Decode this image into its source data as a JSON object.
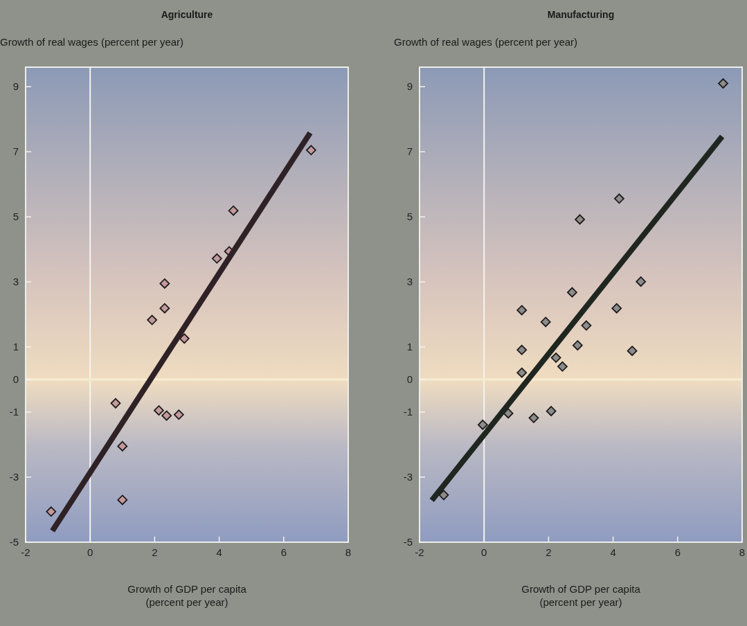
{
  "chart_data": [
    {
      "type": "scatter",
      "title": "Agriculture",
      "ylabel": "Growth of real wages (percent per year)",
      "xlabel": "Growth of GDP per capita\n(percent per year)",
      "xlim": [
        -2,
        8
      ],
      "xticks": [
        -2,
        0,
        2,
        4,
        6,
        8
      ],
      "ylim": [
        -5,
        9.6
      ],
      "yticks": [
        -5,
        -3,
        -1,
        0,
        1,
        3,
        5,
        7,
        9
      ],
      "grid": false,
      "ref_lines": [
        {
          "axis": "x",
          "value": 0,
          "color": "#f4f4f0"
        },
        {
          "axis": "y",
          "value": 0,
          "color": "#f6ecd4"
        }
      ],
      "series": [
        {
          "marker": "diamond",
          "color": "#c39a9c",
          "x": [
            6.85,
            4.44,
            4.31,
            3.93,
            2.31,
            2.31,
            1.92,
            2.92,
            0.79,
            2.13,
            2.37,
            2.75,
            1.0,
            1.0,
            -1.21
          ],
          "values": [
            7.05,
            5.19,
            3.94,
            3.72,
            2.95,
            2.19,
            1.83,
            1.26,
            -0.73,
            -0.95,
            -1.11,
            -1.08,
            -2.05,
            -3.7,
            -4.06
          ]
        },
        {
          "type": "line",
          "color": "#2f2226",
          "x": [
            -1.17,
            6.82
          ],
          "values": [
            -4.65,
            7.58
          ]
        }
      ]
    },
    {
      "type": "scatter",
      "title": "Manufacturing",
      "ylabel": "Growth of real wages (percent per year)",
      "xlabel": "Growth of GDP per capita\n(percent per year)",
      "xlim": [
        -2,
        8
      ],
      "xticks": [
        -2,
        0,
        2,
        4,
        6,
        8
      ],
      "ylim": [
        -5,
        9.6
      ],
      "yticks": [
        -5,
        -3,
        -1,
        0,
        1,
        3,
        5,
        7,
        9
      ],
      "grid": false,
      "ref_lines": [
        {
          "axis": "x",
          "value": 0,
          "color": "#f4f4f0"
        },
        {
          "axis": "y",
          "value": 0,
          "color": "#f6ecd4"
        }
      ],
      "series": [
        {
          "marker": "diamond",
          "color": "#8c8c8a",
          "x": [
            7.41,
            4.19,
            2.97,
            4.86,
            2.73,
            4.11,
            1.17,
            1.91,
            3.17,
            2.9,
            1.17,
            4.59,
            2.23,
            2.43,
            1.17,
            2.08,
            0.75,
            1.54,
            -0.04,
            -1.25
          ],
          "values": [
            9.1,
            5.56,
            4.92,
            3.01,
            2.68,
            2.19,
            2.13,
            1.77,
            1.66,
            1.05,
            0.91,
            0.88,
            0.67,
            0.4,
            0.21,
            -0.97,
            -1.04,
            -1.18,
            -1.39,
            -3.55
          ]
        },
        {
          "type": "line",
          "color": "#1f2620",
          "x": [
            -1.62,
            7.38
          ],
          "values": [
            -3.71,
            7.47
          ]
        }
      ]
    }
  ]
}
